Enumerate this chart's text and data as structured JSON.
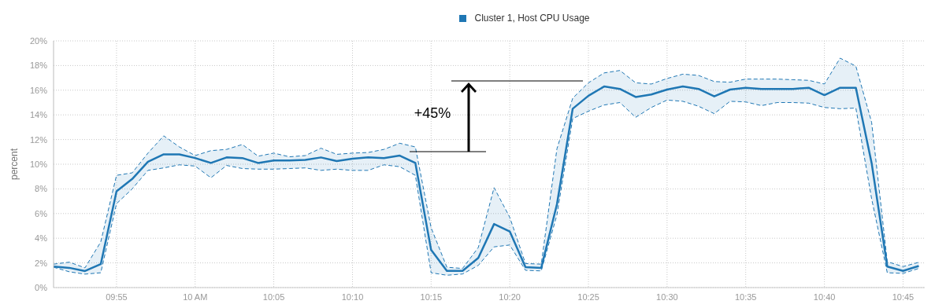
{
  "chart_data": {
    "type": "line",
    "ylabel": "percent",
    "legend": "top",
    "grid": true,
    "marker": "none",
    "line_style": "solid",
    "x": [
      9.85,
      9.8667,
      9.8833,
      9.9,
      9.9167,
      9.9333,
      9.95,
      9.9667,
      9.9833,
      10,
      10.0167,
      10.0333,
      10.05,
      10.0667,
      10.0833,
      10.1,
      10.1167,
      10.1333,
      10.15,
      10.1667,
      10.1833,
      10.2,
      10.2167,
      10.2333,
      10.25,
      10.2667,
      10.2833,
      10.3,
      10.3167,
      10.3333,
      10.35,
      10.3667,
      10.3833,
      10.4,
      10.4167,
      10.4333,
      10.45,
      10.4667,
      10.4833,
      10.5,
      10.5167,
      10.5333,
      10.55,
      10.5667,
      10.5833,
      10.6,
      10.6167,
      10.6333,
      10.65,
      10.6667,
      10.6833,
      10.7,
      10.7167,
      10.7333,
      10.75,
      10.7667
    ],
    "xlim": [
      9.85,
      10.773
    ],
    "xticks": [
      {
        "value": 9.9167,
        "label": "09:55"
      },
      {
        "value": 10,
        "label": "10 AM"
      },
      {
        "value": 10.0833,
        "label": "10:05"
      },
      {
        "value": 10.1667,
        "label": "10:10"
      },
      {
        "value": 10.25,
        "label": "10:15"
      },
      {
        "value": 10.3333,
        "label": "10:20"
      },
      {
        "value": 10.4167,
        "label": "10:25"
      },
      {
        "value": 10.5,
        "label": "10:30"
      },
      {
        "value": 10.5833,
        "label": "10:35"
      },
      {
        "value": 10.6667,
        "label": "10:40"
      },
      {
        "value": 10.75,
        "label": "10:45"
      }
    ],
    "ylim": [
      0,
      20
    ],
    "yticks": [
      {
        "value": 0,
        "label": "0%"
      },
      {
        "value": 2,
        "label": "2%"
      },
      {
        "value": 4,
        "label": "4%"
      },
      {
        "value": 6,
        "label": "6%"
      },
      {
        "value": 8,
        "label": "8%"
      },
      {
        "value": 10,
        "label": "10%"
      },
      {
        "value": 12,
        "label": "12%"
      },
      {
        "value": 14,
        "label": "14%"
      },
      {
        "value": 16,
        "label": "16%"
      },
      {
        "value": 18,
        "label": "18%"
      },
      {
        "value": 20,
        "label": "20%"
      }
    ],
    "series": [
      {
        "name": "Cluster 1, Host CPU Usage",
        "color": "#1f77b4",
        "values": [
          1.71,
          1.6,
          1.34,
          1.9,
          7.8,
          8.8,
          10.2,
          10.8,
          10.8,
          10.5,
          10.1,
          10.55,
          10.5,
          10.1,
          10.3,
          10.3,
          10.35,
          10.55,
          10.25,
          10.45,
          10.55,
          10.5,
          10.7,
          10.1,
          3.05,
          1.35,
          1.35,
          2.4,
          5.15,
          4.55,
          1.65,
          1.6,
          6.75,
          14.5,
          15.55,
          16.3,
          16.1,
          15.45,
          15.65,
          16.05,
          16.3,
          16.1,
          15.5,
          16.05,
          16.2,
          16.1,
          16.1,
          16.1,
          16.2,
          15.6,
          16.2,
          16.2,
          10.1,
          1.7,
          1.35,
          1.75
        ],
        "lower": [
          1.65,
          1.28,
          1.09,
          1.2,
          6.8,
          8.0,
          9.5,
          9.7,
          9.95,
          9.85,
          8.9,
          9.9,
          9.65,
          9.6,
          9.6,
          9.65,
          9.7,
          9.5,
          9.6,
          9.5,
          9.5,
          9.95,
          9.8,
          9.1,
          1.2,
          1.0,
          1.1,
          1.8,
          3.3,
          3.45,
          1.4,
          1.35,
          5.9,
          13.7,
          14.3,
          14.8,
          15.0,
          13.8,
          14.6,
          15.2,
          15.1,
          14.7,
          14.1,
          15.1,
          15.05,
          14.75,
          15.0,
          15.0,
          14.95,
          14.6,
          14.5,
          14.55,
          7.2,
          1.2,
          1.15,
          1.55
        ],
        "upper": [
          1.9,
          2.06,
          1.6,
          3.7,
          9.1,
          9.3,
          10.9,
          12.3,
          11.4,
          10.7,
          11.1,
          11.2,
          11.6,
          10.65,
          10.9,
          10.6,
          10.7,
          11.3,
          10.8,
          10.9,
          10.95,
          11.2,
          11.7,
          11.4,
          4.85,
          1.65,
          1.55,
          3.25,
          8.1,
          5.7,
          1.95,
          1.9,
          11.25,
          15.35,
          16.6,
          17.4,
          17.6,
          16.6,
          16.5,
          16.95,
          17.3,
          17.2,
          16.7,
          16.65,
          16.9,
          16.9,
          16.9,
          16.85,
          16.8,
          16.5,
          18.6,
          17.95,
          13.4,
          2.1,
          1.7,
          2.05
        ]
      },
      {
        "color": "#1f77b4",
        "line_style": "dashed",
        "values": [
          1.65,
          1.28,
          1.09,
          1.2,
          6.8,
          8.0,
          9.5,
          9.7,
          9.95,
          9.85,
          8.9,
          9.9,
          9.65,
          9.6,
          9.6,
          9.65,
          9.7,
          9.5,
          9.6,
          9.5,
          9.5,
          9.95,
          9.8,
          9.1,
          1.2,
          1.0,
          1.1,
          1.8,
          3.3,
          3.45,
          1.4,
          1.35,
          5.9,
          13.7,
          14.3,
          14.8,
          15.0,
          13.8,
          14.6,
          15.2,
          15.1,
          14.7,
          14.1,
          15.1,
          15.05,
          14.75,
          15.0,
          15.0,
          14.95,
          14.6,
          14.5,
          14.55,
          7.2,
          1.2,
          1.15,
          1.55
        ]
      },
      {
        "color": "#1f77b4",
        "line_style": "dashed",
        "values": [
          1.9,
          2.06,
          1.6,
          3.7,
          9.1,
          9.3,
          10.9,
          12.3,
          11.4,
          10.7,
          11.1,
          11.2,
          11.6,
          10.65,
          10.9,
          10.6,
          10.7,
          11.3,
          10.8,
          10.9,
          10.95,
          11.2,
          11.7,
          11.4,
          4.85,
          1.65,
          1.55,
          3.25,
          8.1,
          5.7,
          1.95,
          1.9,
          11.25,
          15.35,
          16.6,
          17.4,
          17.6,
          16.6,
          16.5,
          16.95,
          17.3,
          17.2,
          16.7,
          16.65,
          16.9,
          16.9,
          16.9,
          16.85,
          16.8,
          16.5,
          18.6,
          17.95,
          13.4,
          2.1,
          1.7,
          2.05
        ]
      }
    ],
    "annotations": [
      "+45%"
    ]
  }
}
